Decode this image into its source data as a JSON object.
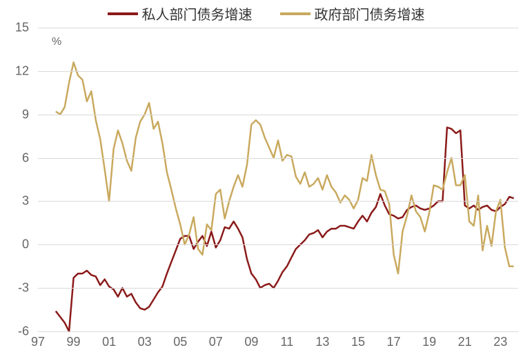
{
  "chart": {
    "type": "line",
    "legend": {
      "items": [
        {
          "label": "私人部门债务增速",
          "color": "#8b1a1a"
        },
        {
          "label": "政府部门债务增速",
          "color": "#c9a95e"
        }
      ]
    },
    "y_axis": {
      "unit": "%",
      "min": -6,
      "max": 15,
      "ticks": [
        -6,
        -3,
        0,
        3,
        6,
        9,
        12,
        15
      ],
      "grid_color": "#d9d9d9",
      "font_size": 18,
      "label_color": "#666666"
    },
    "x_axis": {
      "ticks": [
        "97",
        "99",
        "01",
        "03",
        "05",
        "07",
        "09",
        "11",
        "13",
        "15",
        "17",
        "19",
        "21",
        "23"
      ],
      "min": 1997,
      "max": 2024,
      "font_size": 18,
      "label_color": "#666666"
    },
    "background_color": "#ffffff",
    "line_width": 2.5,
    "series": [
      {
        "name": "私人部门债务增速",
        "color": "#8b1a1a",
        "points": [
          [
            1998.0,
            -4.6
          ],
          [
            1998.25,
            -5.0
          ],
          [
            1998.5,
            -5.4
          ],
          [
            1998.75,
            -6.0
          ],
          [
            1999.0,
            -2.3
          ],
          [
            1999.25,
            -2.0
          ],
          [
            1999.5,
            -2.0
          ],
          [
            1999.75,
            -1.8
          ],
          [
            2000.0,
            -2.1
          ],
          [
            2000.25,
            -2.2
          ],
          [
            2000.5,
            -2.8
          ],
          [
            2000.75,
            -2.4
          ],
          [
            2001.0,
            -2.9
          ],
          [
            2001.25,
            -3.1
          ],
          [
            2001.5,
            -3.6
          ],
          [
            2001.75,
            -3.0
          ],
          [
            2002.0,
            -3.6
          ],
          [
            2002.25,
            -3.4
          ],
          [
            2002.5,
            -4.0
          ],
          [
            2002.75,
            -4.4
          ],
          [
            2003.0,
            -4.5
          ],
          [
            2003.25,
            -4.3
          ],
          [
            2003.5,
            -3.8
          ],
          [
            2003.75,
            -3.3
          ],
          [
            2004.0,
            -2.9
          ],
          [
            2004.25,
            -2.0
          ],
          [
            2004.5,
            -1.2
          ],
          [
            2004.75,
            -0.4
          ],
          [
            2005.0,
            0.4
          ],
          [
            2005.25,
            0.6
          ],
          [
            2005.5,
            0.6
          ],
          [
            2005.75,
            -0.3
          ],
          [
            2006.0,
            0.2
          ],
          [
            2006.25,
            0.6
          ],
          [
            2006.5,
            -0.1
          ],
          [
            2006.75,
            0.9
          ],
          [
            2007.0,
            -0.2
          ],
          [
            2007.25,
            0.3
          ],
          [
            2007.5,
            1.2
          ],
          [
            2007.75,
            1.1
          ],
          [
            2008.0,
            1.6
          ],
          [
            2008.25,
            1.1
          ],
          [
            2008.5,
            0.5
          ],
          [
            2008.75,
            -1.0
          ],
          [
            2009.0,
            -2.0
          ],
          [
            2009.25,
            -2.4
          ],
          [
            2009.5,
            -3.0
          ],
          [
            2009.75,
            -2.8
          ],
          [
            2010.0,
            -2.7
          ],
          [
            2010.25,
            -3.0
          ],
          [
            2010.5,
            -2.5
          ],
          [
            2010.75,
            -1.9
          ],
          [
            2011.0,
            -1.5
          ],
          [
            2011.25,
            -0.9
          ],
          [
            2011.5,
            -0.3
          ],
          [
            2011.75,
            0.0
          ],
          [
            2012.0,
            0.3
          ],
          [
            2012.25,
            0.7
          ],
          [
            2012.5,
            0.8
          ],
          [
            2012.75,
            1.0
          ],
          [
            2013.0,
            0.5
          ],
          [
            2013.25,
            0.9
          ],
          [
            2013.5,
            1.1
          ],
          [
            2013.75,
            1.1
          ],
          [
            2014.0,
            1.3
          ],
          [
            2014.25,
            1.3
          ],
          [
            2014.5,
            1.2
          ],
          [
            2014.75,
            1.1
          ],
          [
            2015.0,
            1.6
          ],
          [
            2015.25,
            2.0
          ],
          [
            2015.5,
            1.6
          ],
          [
            2015.75,
            2.2
          ],
          [
            2016.0,
            2.6
          ],
          [
            2016.25,
            3.5
          ],
          [
            2016.5,
            2.7
          ],
          [
            2016.75,
            2.1
          ],
          [
            2017.0,
            2.0
          ],
          [
            2017.25,
            1.8
          ],
          [
            2017.5,
            1.9
          ],
          [
            2017.75,
            2.4
          ],
          [
            2018.0,
            2.6
          ],
          [
            2018.25,
            2.7
          ],
          [
            2018.5,
            2.5
          ],
          [
            2018.75,
            2.4
          ],
          [
            2019.0,
            2.5
          ],
          [
            2019.25,
            2.7
          ],
          [
            2019.5,
            3.0
          ],
          [
            2019.75,
            3.0
          ],
          [
            2020.0,
            8.1
          ],
          [
            2020.25,
            8.0
          ],
          [
            2020.5,
            7.7
          ],
          [
            2020.75,
            7.9
          ],
          [
            2021.0,
            2.7
          ],
          [
            2021.25,
            2.5
          ],
          [
            2021.5,
            2.7
          ],
          [
            2021.75,
            2.4
          ],
          [
            2022.0,
            2.6
          ],
          [
            2022.25,
            2.7
          ],
          [
            2022.5,
            2.4
          ],
          [
            2022.75,
            2.3
          ],
          [
            2023.0,
            2.6
          ],
          [
            2023.25,
            2.8
          ],
          [
            2023.5,
            3.3
          ],
          [
            2023.75,
            3.2
          ]
        ]
      },
      {
        "name": "政府部门债务增速",
        "color": "#c9a95e",
        "points": [
          [
            1998.0,
            9.2
          ],
          [
            1998.25,
            9.0
          ],
          [
            1998.5,
            9.5
          ],
          [
            1998.75,
            11.2
          ],
          [
            1999.0,
            12.6
          ],
          [
            1999.25,
            11.7
          ],
          [
            1999.5,
            11.4
          ],
          [
            1999.75,
            9.9
          ],
          [
            2000.0,
            10.6
          ],
          [
            2000.25,
            8.6
          ],
          [
            2000.5,
            7.3
          ],
          [
            2000.75,
            5.2
          ],
          [
            2001.0,
            3.0
          ],
          [
            2001.25,
            6.6
          ],
          [
            2001.5,
            7.9
          ],
          [
            2001.75,
            7.0
          ],
          [
            2002.0,
            5.8
          ],
          [
            2002.25,
            5.1
          ],
          [
            2002.5,
            7.4
          ],
          [
            2002.75,
            8.5
          ],
          [
            2003.0,
            9.0
          ],
          [
            2003.25,
            9.8
          ],
          [
            2003.5,
            8.0
          ],
          [
            2003.75,
            8.5
          ],
          [
            2004.0,
            7.0
          ],
          [
            2004.25,
            5.0
          ],
          [
            2004.5,
            3.8
          ],
          [
            2004.75,
            2.5
          ],
          [
            2005.0,
            1.4
          ],
          [
            2005.25,
            0.0
          ],
          [
            2005.5,
            0.7
          ],
          [
            2005.75,
            1.9
          ],
          [
            2006.0,
            -0.3
          ],
          [
            2006.25,
            -0.7
          ],
          [
            2006.5,
            1.4
          ],
          [
            2006.75,
            1.0
          ],
          [
            2007.0,
            3.5
          ],
          [
            2007.25,
            3.8
          ],
          [
            2007.5,
            1.8
          ],
          [
            2007.75,
            3.0
          ],
          [
            2008.0,
            4.0
          ],
          [
            2008.25,
            4.8
          ],
          [
            2008.5,
            4.0
          ],
          [
            2008.75,
            5.5
          ],
          [
            2009.0,
            8.3
          ],
          [
            2009.25,
            8.6
          ],
          [
            2009.5,
            8.3
          ],
          [
            2009.75,
            7.4
          ],
          [
            2010.0,
            6.7
          ],
          [
            2010.25,
            6.0
          ],
          [
            2010.5,
            7.2
          ],
          [
            2010.75,
            5.8
          ],
          [
            2011.0,
            6.2
          ],
          [
            2011.25,
            6.1
          ],
          [
            2011.5,
            4.7
          ],
          [
            2011.75,
            4.2
          ],
          [
            2012.0,
            5.0
          ],
          [
            2012.25,
            4.0
          ],
          [
            2012.5,
            4.2
          ],
          [
            2012.75,
            4.6
          ],
          [
            2013.0,
            3.8
          ],
          [
            2013.25,
            4.8
          ],
          [
            2013.5,
            4.0
          ],
          [
            2013.75,
            3.6
          ],
          [
            2014.0,
            2.9
          ],
          [
            2014.25,
            3.4
          ],
          [
            2014.5,
            3.1
          ],
          [
            2014.75,
            2.5
          ],
          [
            2015.0,
            3.1
          ],
          [
            2015.25,
            4.6
          ],
          [
            2015.5,
            4.4
          ],
          [
            2015.75,
            6.2
          ],
          [
            2016.0,
            4.8
          ],
          [
            2016.25,
            3.8
          ],
          [
            2016.5,
            3.7
          ],
          [
            2016.75,
            2.8
          ],
          [
            2017.0,
            -0.7
          ],
          [
            2017.25,
            -2.0
          ],
          [
            2017.5,
            0.9
          ],
          [
            2017.75,
            2.0
          ],
          [
            2018.0,
            3.4
          ],
          [
            2018.25,
            2.3
          ],
          [
            2018.5,
            1.9
          ],
          [
            2018.75,
            0.9
          ],
          [
            2019.0,
            2.2
          ],
          [
            2019.25,
            4.1
          ],
          [
            2019.5,
            4.0
          ],
          [
            2019.75,
            3.8
          ],
          [
            2020.0,
            5.0
          ],
          [
            2020.25,
            6.0
          ],
          [
            2020.5,
            4.1
          ],
          [
            2020.75,
            4.1
          ],
          [
            2021.0,
            4.8
          ],
          [
            2021.25,
            1.6
          ],
          [
            2021.5,
            1.3
          ],
          [
            2021.75,
            3.4
          ],
          [
            2022.0,
            -0.4
          ],
          [
            2022.25,
            1.3
          ],
          [
            2022.5,
            -0.1
          ],
          [
            2022.75,
            2.3
          ],
          [
            2023.0,
            3.1
          ],
          [
            2023.25,
            -0.2
          ],
          [
            2023.5,
            -1.5
          ],
          [
            2023.75,
            -1.5
          ]
        ]
      }
    ]
  }
}
